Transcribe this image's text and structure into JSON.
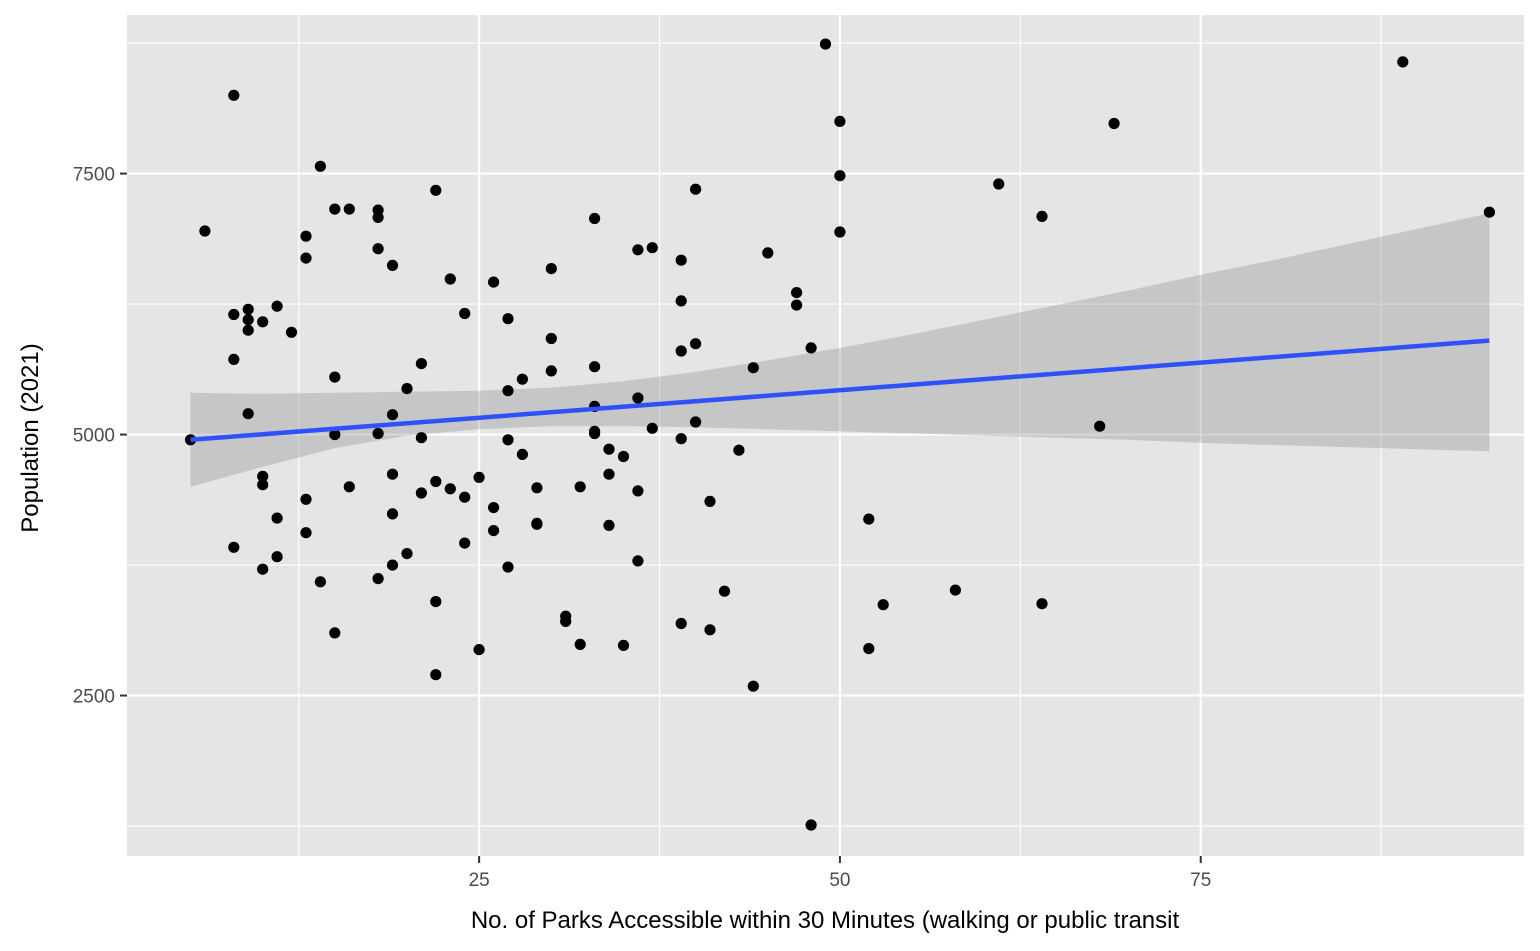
{
  "chart_data": {
    "type": "scatter",
    "title": "",
    "xlabel": "No. of Parks Accessible within 30 Minutes (walking or public transit",
    "ylabel": "Population (2021)",
    "xlim": [
      0.6,
      97.4
    ],
    "ylim": [
      963,
      9019
    ],
    "x_major_ticks": [
      25,
      50,
      75
    ],
    "x_minor_ticks": [
      12.5,
      37.5,
      62.5,
      87.5
    ],
    "y_major_ticks": [
      2500,
      5000,
      7500
    ],
    "y_minor_ticks": [
      1250,
      3750,
      6250,
      8750
    ],
    "x_tick_labels": [
      "25",
      "50",
      "75"
    ],
    "y_tick_labels": [
      "2500",
      "5000",
      "7500"
    ],
    "grid": true,
    "colors": {
      "panel": "#e5e5e5",
      "grid": "#ffffff",
      "points": "#000000",
      "fit_line": "#3050f8",
      "confidence_band": "#bdbdbd"
    },
    "points": [
      [
        5,
        4950
      ],
      [
        6,
        6950
      ],
      [
        8,
        8250
      ],
      [
        8,
        6150
      ],
      [
        8,
        5720
      ],
      [
        8,
        3920
      ],
      [
        9,
        6200
      ],
      [
        9,
        6100
      ],
      [
        9,
        6000
      ],
      [
        9,
        5200
      ],
      [
        10,
        6080
      ],
      [
        10,
        4600
      ],
      [
        10,
        4520
      ],
      [
        10,
        3710
      ],
      [
        11,
        6230
      ],
      [
        11,
        4200
      ],
      [
        11,
        3830
      ],
      [
        12,
        5980
      ],
      [
        13,
        6900
      ],
      [
        13,
        6690
      ],
      [
        13,
        4380
      ],
      [
        13,
        4060
      ],
      [
        14,
        7570
      ],
      [
        14,
        3590
      ],
      [
        15,
        7160
      ],
      [
        15,
        5550
      ],
      [
        15,
        5000
      ],
      [
        15,
        3100
      ],
      [
        16,
        7160
      ],
      [
        16,
        4500
      ],
      [
        18,
        7150
      ],
      [
        18,
        7080
      ],
      [
        18,
        6780
      ],
      [
        18,
        5010
      ],
      [
        18,
        3620
      ],
      [
        19,
        6620
      ],
      [
        19,
        5190
      ],
      [
        19,
        4620
      ],
      [
        19,
        4240
      ],
      [
        19,
        3750
      ],
      [
        20,
        5440
      ],
      [
        20,
        3860
      ],
      [
        21,
        5680
      ],
      [
        21,
        4970
      ],
      [
        21,
        4440
      ],
      [
        22,
        7340
      ],
      [
        22,
        4550
      ],
      [
        22,
        3400
      ],
      [
        22,
        2700
      ],
      [
        23,
        6490
      ],
      [
        23,
        4480
      ],
      [
        24,
        6160
      ],
      [
        24,
        4400
      ],
      [
        24,
        3960
      ],
      [
        25,
        4590
      ],
      [
        25,
        2940
      ],
      [
        26,
        6460
      ],
      [
        26,
        4300
      ],
      [
        26,
        4080
      ],
      [
        27,
        6110
      ],
      [
        27,
        5420
      ],
      [
        27,
        4950
      ],
      [
        27,
        3730
      ],
      [
        28,
        5530
      ],
      [
        28,
        4810
      ],
      [
        29,
        4490
      ],
      [
        29,
        4150
      ],
      [
        29,
        4140
      ],
      [
        30,
        6590
      ],
      [
        30,
        5920
      ],
      [
        30,
        5610
      ],
      [
        31,
        3260
      ],
      [
        31,
        3210
      ],
      [
        32,
        4500
      ],
      [
        32,
        2990
      ],
      [
        33,
        7070
      ],
      [
        33,
        5650
      ],
      [
        33,
        5270
      ],
      [
        33,
        5030
      ],
      [
        33,
        5010
      ],
      [
        34,
        4860
      ],
      [
        34,
        4620
      ],
      [
        34,
        4130
      ],
      [
        35,
        4790
      ],
      [
        35,
        2980
      ],
      [
        36,
        6770
      ],
      [
        36,
        5350
      ],
      [
        36,
        4460
      ],
      [
        36,
        3790
      ],
      [
        37,
        6790
      ],
      [
        37,
        5060
      ],
      [
        39,
        6670
      ],
      [
        39,
        6280
      ],
      [
        39,
        5800
      ],
      [
        39,
        4960
      ],
      [
        39,
        3190
      ],
      [
        40,
        7350
      ],
      [
        40,
        5870
      ],
      [
        40,
        5120
      ],
      [
        41,
        4360
      ],
      [
        41,
        3130
      ],
      [
        42,
        3500
      ],
      [
        43,
        4850
      ],
      [
        44,
        5640
      ],
      [
        44,
        2590
      ],
      [
        45,
        6740
      ],
      [
        47,
        6360
      ],
      [
        47,
        6240
      ],
      [
        48,
        5830
      ],
      [
        48,
        1260
      ],
      [
        49,
        8740
      ],
      [
        50,
        8000
      ],
      [
        50,
        7480
      ],
      [
        50,
        6940
      ],
      [
        52,
        4190
      ],
      [
        52,
        2950
      ],
      [
        53,
        3370
      ],
      [
        58,
        3510
      ],
      [
        61,
        7400
      ],
      [
        64,
        7090
      ],
      [
        64,
        3380
      ],
      [
        68,
        5080
      ],
      [
        69,
        7980
      ],
      [
        89,
        8570
      ],
      [
        95,
        7130
      ]
    ],
    "fit_line": {
      "x": [
        5,
        95
      ],
      "y": [
        4950,
        5900
      ]
    },
    "confidence_band": {
      "x": [
        5,
        10,
        15,
        20,
        25,
        30,
        35,
        40,
        45,
        50,
        55,
        60,
        65,
        70,
        75,
        80,
        85,
        90,
        95
      ],
      "upper": [
        5400,
        5390,
        5400,
        5410,
        5420,
        5450,
        5510,
        5600,
        5710,
        5830,
        5960,
        6100,
        6240,
        6380,
        6530,
        6670,
        6820,
        6970,
        7120
      ],
      "lower": [
        4500,
        4690,
        4870,
        4990,
        5050,
        5080,
        5080,
        5070,
        5050,
        5030,
        5010,
        4990,
        4970,
        4950,
        4920,
        4900,
        4880,
        4860,
        4840
      ]
    }
  }
}
